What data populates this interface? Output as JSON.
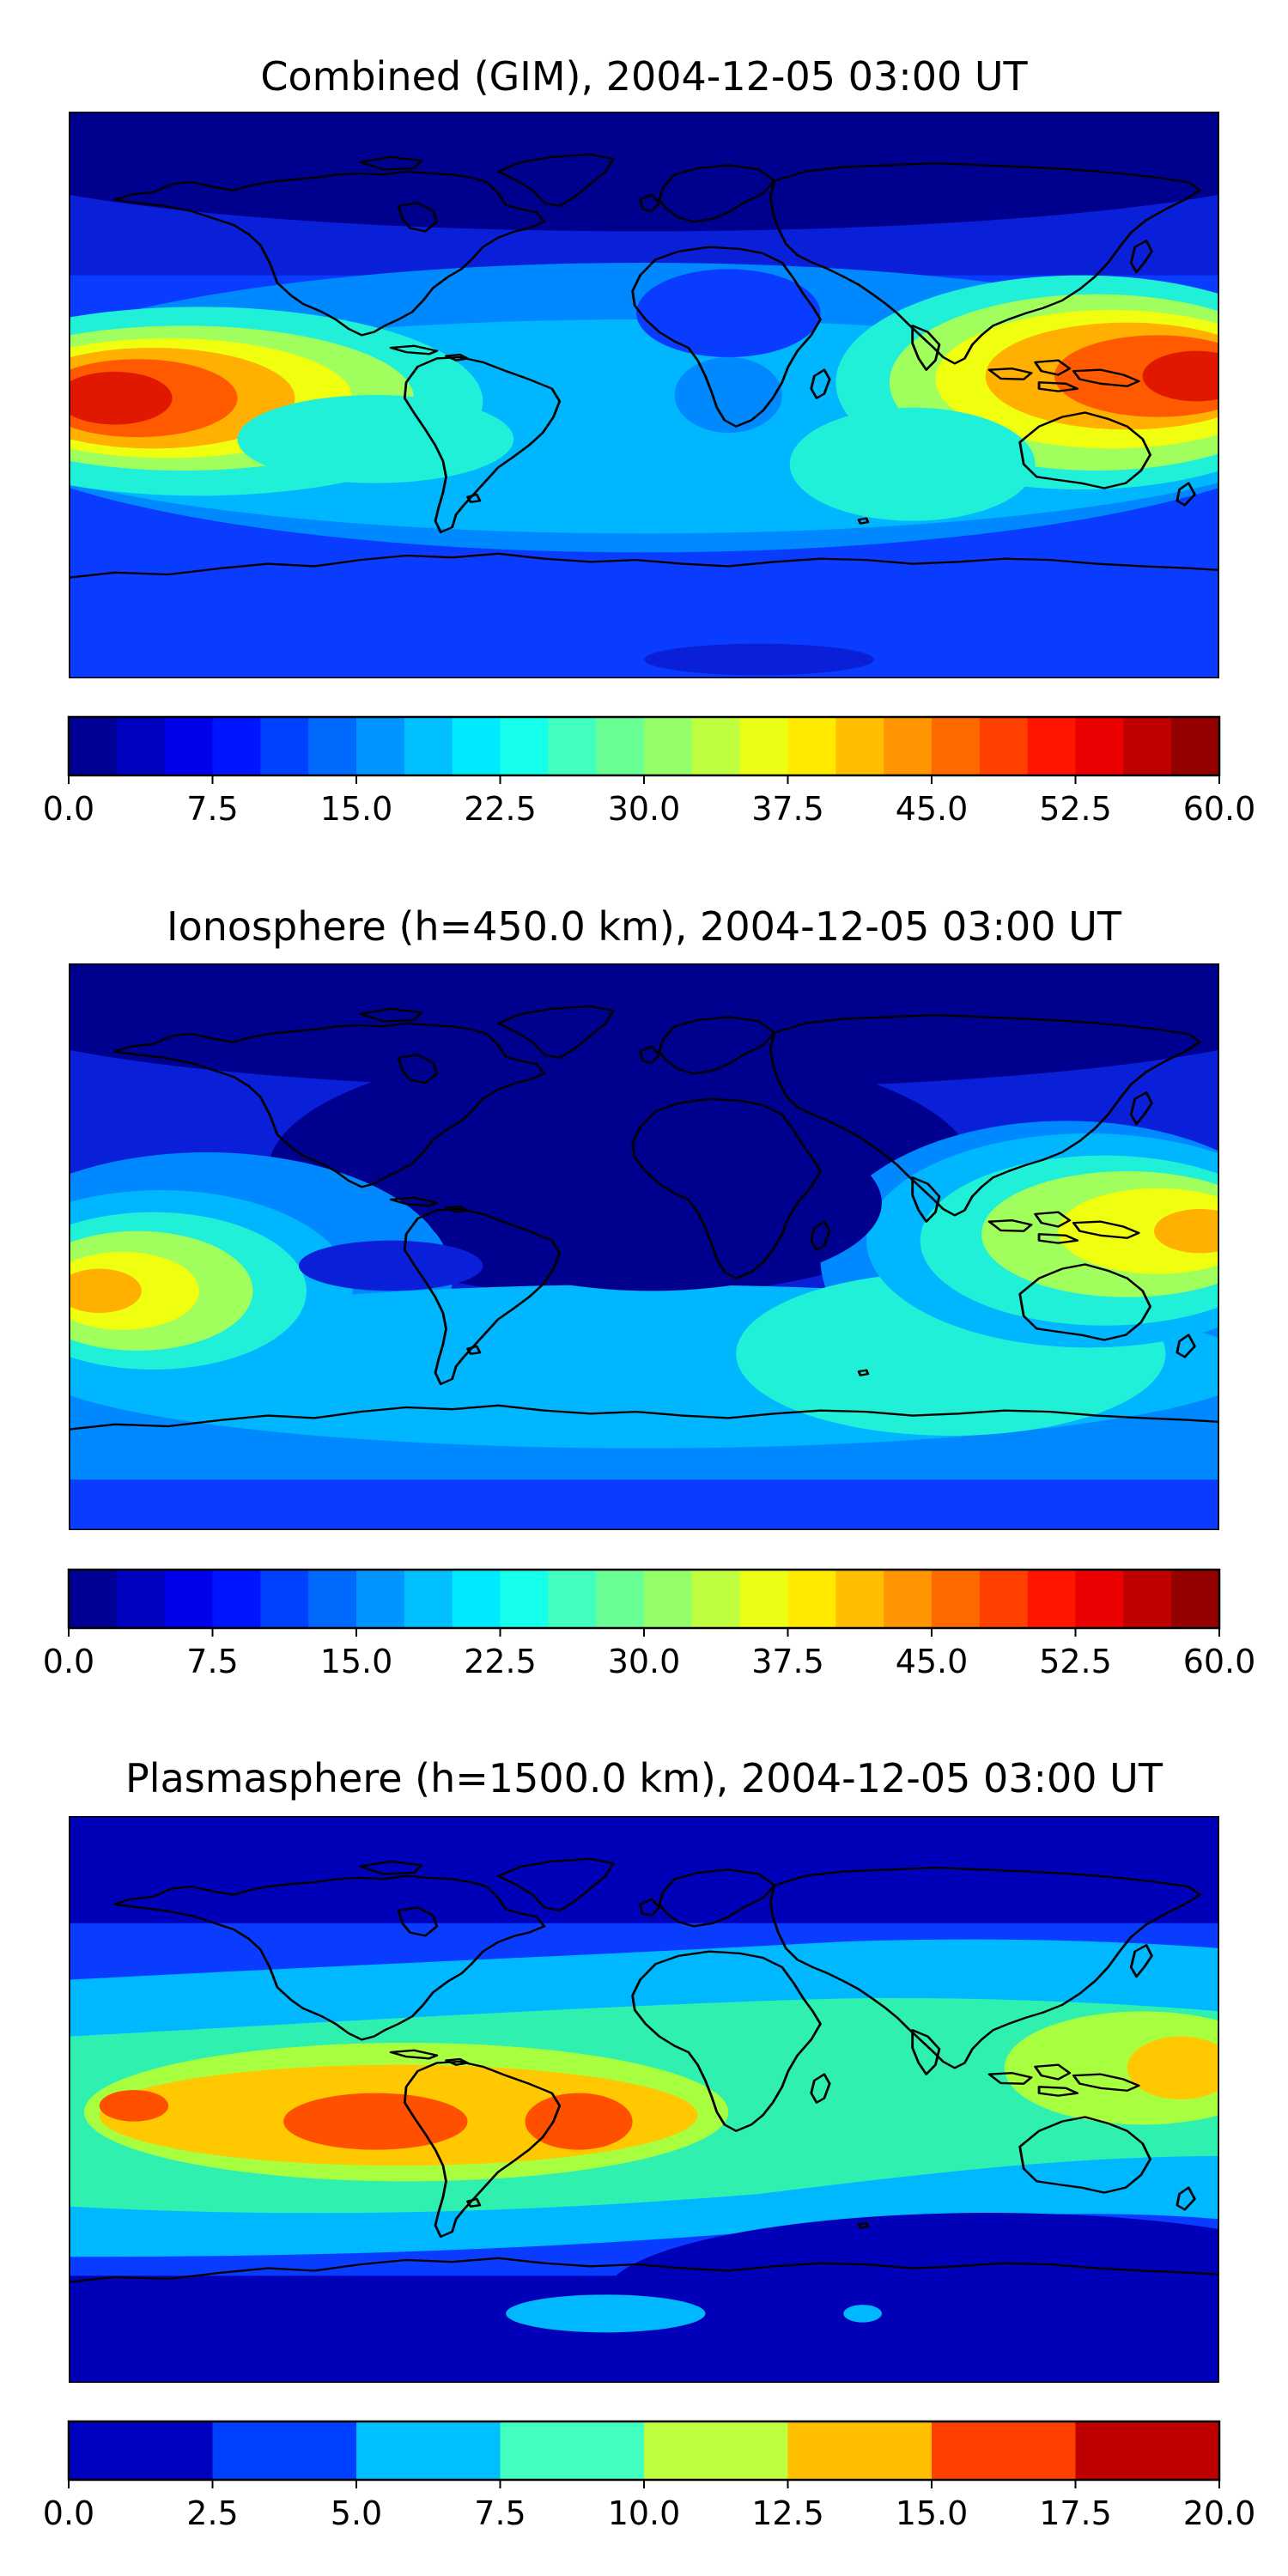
{
  "panels": [
    {
      "id": "combined",
      "title": "Combined (GIM), 2004-12-05 03:00 UT",
      "colorbar": {
        "min": 0.0,
        "max": 60.0,
        "levels": 24,
        "tick_labels": [
          "0.0",
          "7.5",
          "15.0",
          "22.5",
          "30.0",
          "37.5",
          "45.0",
          "52.5",
          "60.0"
        ]
      }
    },
    {
      "id": "ionosphere",
      "title": "Ionosphere  (h=450.0 km), 2004-12-05 03:00 UT",
      "colorbar": {
        "min": 0.0,
        "max": 60.0,
        "levels": 24,
        "tick_labels": [
          "0.0",
          "7.5",
          "15.0",
          "22.5",
          "30.0",
          "37.5",
          "45.0",
          "52.5",
          "60.0"
        ]
      }
    },
    {
      "id": "plasmasphere",
      "title": "Plasmasphere (h=1500.0 km), 2004-12-05 03:00 UT",
      "colorbar": {
        "min": 0.0,
        "max": 20.0,
        "levels": 8,
        "tick_labels": [
          "0.0",
          "2.5",
          "5.0",
          "7.5",
          "10.0",
          "12.5",
          "15.0",
          "17.5",
          "20.0"
        ]
      }
    }
  ],
  "colormap": "jet",
  "map": {
    "projection": "equirectangular",
    "coastlines": true,
    "gridlines": false
  }
}
